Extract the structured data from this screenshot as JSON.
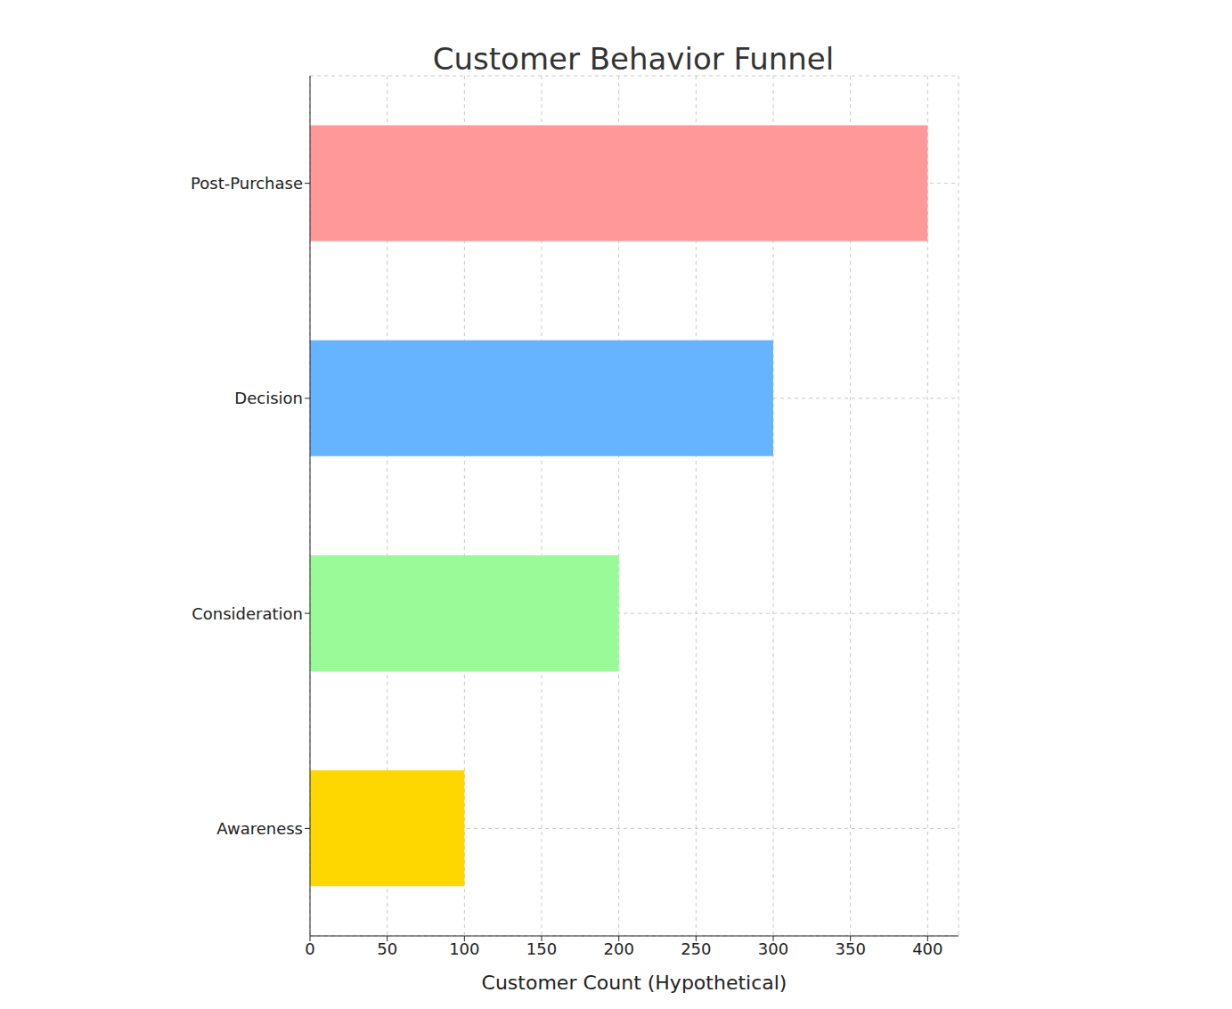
{
  "chart_data": {
    "type": "bar",
    "title": "Customer Behavior Funnel",
    "xlabel": "Customer Count (Hypothetical)",
    "categories": [
      "Awareness",
      "Consideration",
      "Decision",
      "Post-Purchase"
    ],
    "values": [
      100,
      200,
      300,
      400
    ],
    "colors": [
      "#ffd700",
      "#98fb98",
      "#66b3ff",
      "#ff9999"
    ],
    "xlim": [
      0,
      420
    ],
    "xticks": [
      0,
      50,
      100,
      150,
      200,
      250,
      300,
      350,
      400
    ],
    "grid": true,
    "orientation": "horizontal"
  }
}
